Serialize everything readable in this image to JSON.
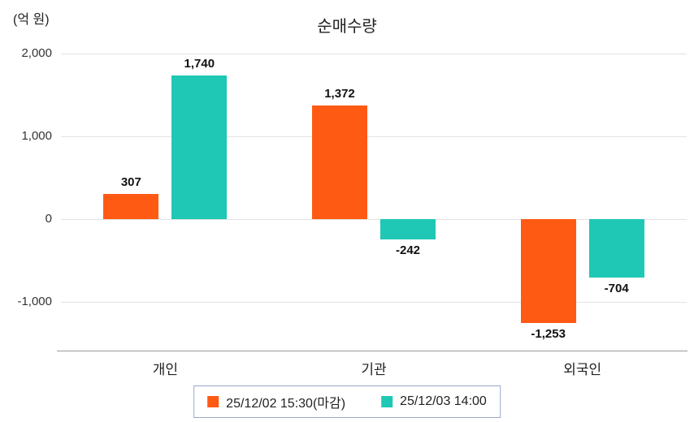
{
  "chart_data": {
    "type": "bar",
    "title": "순매수량",
    "ylabel": "(억 원)",
    "xlabel": "",
    "categories": [
      "개인",
      "기관",
      "외국인"
    ],
    "series": [
      {
        "name": "25/12/02 15:30(마감)",
        "color": "#ff5a14",
        "values": [
          307,
          1372,
          -1253
        ],
        "labels": [
          "307",
          "1,372",
          "-1,253"
        ]
      },
      {
        "name": "25/12/03 14:00",
        "color": "#1ec8b4",
        "values": [
          1740,
          -242,
          -704
        ],
        "labels": [
          "1,740",
          "-242",
          "-704"
        ]
      }
    ],
    "y_ticks": [
      "2,000",
      "1,000",
      "0",
      "-1,000"
    ],
    "y_tick_values": [
      2000,
      1000,
      0,
      -1000
    ],
    "ylim": [
      -1600,
      2300
    ],
    "grid": true,
    "legend_position": "bottom",
    "legend_border_color": "#9aa8cc",
    "axis_line_color": "#999999",
    "gridline_color": "#e2e2e2"
  }
}
